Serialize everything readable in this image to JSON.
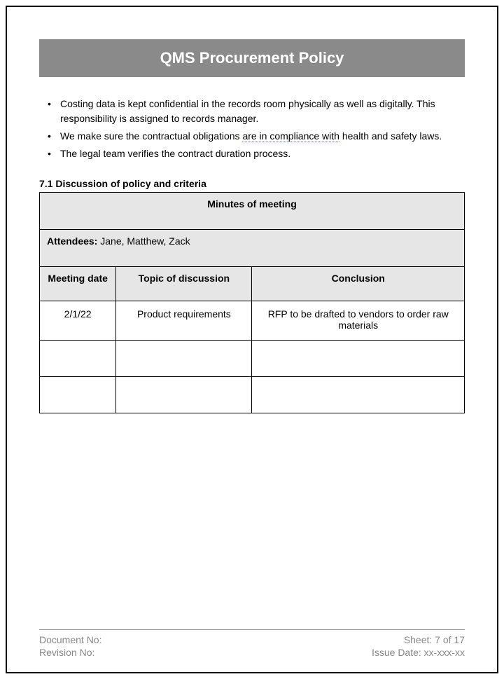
{
  "header": {
    "title": "QMS Procurement Policy"
  },
  "bullets": {
    "item1_part1": "Costing data is kept confidential in the records room physically as well as digitally. This responsibility is assigned to records manager.",
    "item2_part1": "We make sure the contractual obligations ",
    "item2_underlined": "are in compliance with",
    "item2_part2": " health and safety laws.",
    "item3": "The legal team verifies the contract duration process."
  },
  "section": {
    "number": "7.1",
    "title": "Discussion of policy and criteria"
  },
  "meeting_table": {
    "title": "Minutes of meeting",
    "attendees_label": "Attendees:",
    "attendees_value": " Jane, Matthew, Zack",
    "columns": {
      "date": "Meeting date",
      "topic": "Topic of discussion",
      "conclusion": "Conclusion"
    },
    "rows": [
      {
        "date": "2/1/22",
        "topic": "Product requirements",
        "conclusion": "RFP to be drafted to vendors to order raw materials"
      }
    ]
  },
  "footer": {
    "document_no_label": "Document No:",
    "revision_no_label": "Revision No:",
    "sheet_label": "Sheet: 7 of 17",
    "issue_date_label": "Issue Date: xx-xxx-xx"
  },
  "styling": {
    "title_bg": "#8a8a8a",
    "title_color": "#ffffff",
    "table_header_bg": "#e6e6e6",
    "border_color": "#000000",
    "footer_text_color": "#888888",
    "dotted_underline_color": "#6666cc",
    "body_font_size": 14,
    "title_font_size": 22
  }
}
